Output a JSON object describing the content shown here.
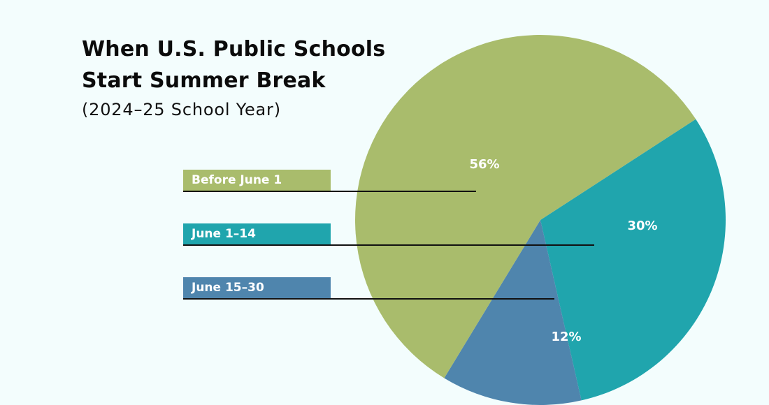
{
  "title_line1": "When U.S. Public Schools",
  "title_line2": "Start Summer Break",
  "subtitle": "(2024–25 School Year)",
  "colors": {
    "background": "#f3fdfd",
    "before_june_1": "#a9bc6c",
    "june_1_14": "#20a5ad",
    "june_15_30": "#4f85ad",
    "leader": "#111111"
  },
  "chart_data": {
    "type": "pie",
    "categories": [
      "Before June 1",
      "June 1–14",
      "June 15–30"
    ],
    "values": [
      56,
      30,
      12
    ],
    "labels": [
      "56%",
      "30%",
      "12%"
    ],
    "legend": [
      "Before June 1",
      "June 1–14",
      "June 15–30"
    ]
  }
}
